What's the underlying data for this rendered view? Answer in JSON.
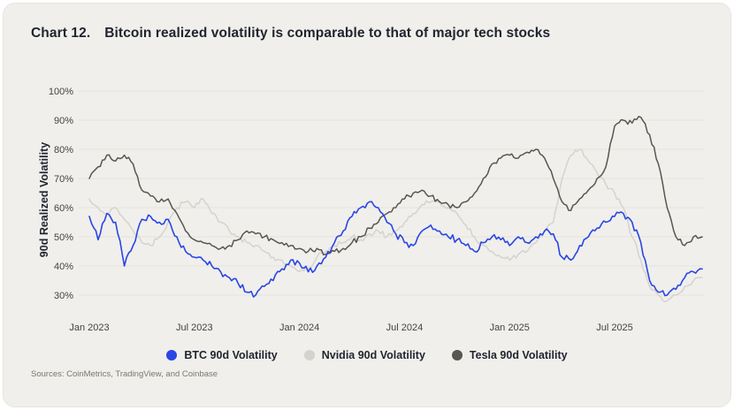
{
  "title": {
    "prefix": "Chart 12.",
    "text": "Bitcoin realized volatility is comparable to that of major tech stocks"
  },
  "footer": {
    "sources": "Sources: CoinMetrics, TradingView, and Coinbase"
  },
  "colors": {
    "card_background": "#f0efeb",
    "text_dark": "#20252f",
    "tick_text": "#45433e",
    "gridline": "#e5e3de",
    "btc_blue": "#2946e5",
    "nvidia_gray": "#d5d3ce",
    "tesla_dark": "#585650"
  },
  "chart_data": {
    "type": "line",
    "title": "Bitcoin realized volatility is comparable to that of major tech stocks",
    "xlabel": "",
    "ylabel": "90d Realized Volatility",
    "x_unit": "months since Jan 2023",
    "ylim": [
      24,
      104
    ],
    "grid": "horizontal-faint",
    "legend_position": "bottom-center",
    "y_ticks": [
      {
        "value": 30,
        "label": "30%"
      },
      {
        "value": 40,
        "label": "40%"
      },
      {
        "value": 50,
        "label": "50%"
      },
      {
        "value": 60,
        "label": "60%"
      },
      {
        "value": 70,
        "label": "70%"
      },
      {
        "value": 80,
        "label": "80%"
      },
      {
        "value": 90,
        "label": "90%"
      },
      {
        "value": 100,
        "label": "100%"
      }
    ],
    "x_ticks": [
      {
        "value": 0,
        "label": "Jan 2023"
      },
      {
        "value": 6,
        "label": "Jul 2023"
      },
      {
        "value": 12,
        "label": "Jan 2024"
      },
      {
        "value": 18,
        "label": "Jul 2024"
      },
      {
        "value": 24,
        "label": "Jan 2025"
      },
      {
        "value": 30,
        "label": "Jul 2025"
      }
    ],
    "x": [
      0,
      0.5,
      1,
      1.5,
      2,
      2.5,
      3,
      3.5,
      4,
      4.5,
      5,
      5.5,
      6,
      6.5,
      7,
      7.5,
      8,
      8.5,
      9,
      9.5,
      10,
      10.5,
      11,
      11.5,
      12,
      12.5,
      13,
      13.5,
      14,
      14.5,
      15,
      15.5,
      16,
      16.5,
      17,
      17.5,
      18,
      18.5,
      19,
      19.5,
      20,
      20.5,
      21,
      21.5,
      22,
      22.5,
      23,
      23.5,
      24,
      24.5,
      25,
      25.5,
      26,
      26.5,
      27,
      27.5,
      28,
      28.5,
      29,
      29.5,
      30,
      30.5,
      31,
      31.5,
      32,
      32.5,
      33,
      33.5,
      34,
      34.5,
      35
    ],
    "draw_order": [
      1,
      2,
      0
    ],
    "series": [
      {
        "name": "BTC 90d Volatility",
        "color": "#2946e5",
        "line_width": 1.6,
        "jitter": 1.2,
        "values": [
          57,
          49,
          58,
          55,
          40,
          47,
          56,
          57,
          55,
          56,
          50,
          45,
          43,
          42,
          40,
          38,
          36,
          34,
          31,
          30,
          33,
          35,
          39,
          42,
          41,
          38,
          40,
          43,
          48,
          52,
          57,
          60,
          62,
          60,
          55,
          51,
          48,
          47,
          52,
          54,
          52,
          50,
          49,
          47,
          45,
          48,
          50,
          49,
          47,
          50,
          48,
          50,
          52,
          51,
          43,
          42,
          47,
          50,
          53,
          55,
          57,
          58,
          55,
          48,
          35,
          31,
          30,
          32,
          36,
          38,
          39
        ]
      },
      {
        "name": "Nvidia 90d Volatility",
        "color": "#d5d3ce",
        "line_width": 1.5,
        "jitter": 0.9,
        "values": [
          63,
          60,
          58,
          60,
          56,
          52,
          48,
          47,
          50,
          55,
          60,
          62,
          60,
          63,
          58,
          55,
          52,
          50,
          48,
          47,
          45,
          43,
          42,
          40,
          38,
          39,
          43,
          45,
          47,
          48,
          50,
          49,
          51,
          52,
          50,
          52,
          55,
          58,
          61,
          62,
          62,
          60,
          58,
          54,
          50,
          47,
          45,
          43,
          42,
          44,
          45,
          48,
          52,
          55,
          70,
          78,
          80,
          76,
          72,
          68,
          65,
          60,
          50,
          42,
          33,
          30,
          28,
          30,
          33,
          35,
          36
        ]
      },
      {
        "name": "Tesla 90d Volatility",
        "color": "#585650",
        "line_width": 1.5,
        "jitter": 0.9,
        "values": [
          70,
          74,
          78,
          76,
          78,
          75,
          66,
          64,
          62,
          63,
          58,
          52,
          49,
          48,
          47,
          46,
          47,
          49,
          52,
          51,
          50,
          49,
          48,
          47,
          46,
          45,
          46,
          44,
          45,
          46,
          48,
          50,
          53,
          55,
          58,
          60,
          63,
          65,
          66,
          64,
          62,
          61,
          60,
          62,
          65,
          70,
          75,
          77,
          78,
          77,
          79,
          80,
          77,
          70,
          62,
          59,
          63,
          66,
          70,
          74,
          88,
          90,
          89,
          91,
          85,
          75,
          60,
          50,
          47,
          50,
          50
        ]
      }
    ]
  }
}
